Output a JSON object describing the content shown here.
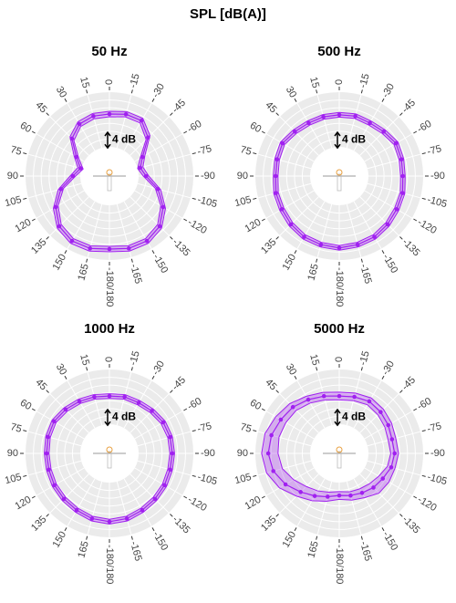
{
  "title": "SPL [dB(A)]",
  "chart_data": [
    {
      "type": "polar",
      "title": "50 Hz",
      "color": "#a020f0",
      "theta": [
        0,
        -15,
        -30,
        -45,
        -60,
        -75,
        -90,
        -105,
        -120,
        -135,
        -150,
        -165,
        180,
        165,
        150,
        135,
        120,
        105,
        90,
        75,
        60,
        45,
        30,
        15
      ],
      "series": [
        {
          "color": "#a020f0",
          "values": [
            8.4,
            8.9,
            8.9,
            6.5,
            2.3,
            0.7,
            1.9,
            5.4,
            8.4,
            10.7,
            11.7,
            11.7,
            11.2,
            11.7,
            11.7,
            10.7,
            8.4,
            5.4,
            1.9,
            0.2,
            2.3,
            6.1,
            7.9,
            8.4
          ],
          "lower": [
            7.7,
            8.2,
            8.2,
            5.8,
            1.6,
            0.0,
            1.2,
            4.7,
            7.7,
            10.0,
            11.0,
            11.0,
            10.5,
            11.0,
            11.0,
            10.0,
            7.7,
            4.7,
            1.2,
            -0.5,
            1.6,
            5.4,
            7.2,
            7.7
          ],
          "upper": [
            9.1,
            9.6,
            9.6,
            7.2,
            3.0,
            1.4,
            2.6,
            6.1,
            9.1,
            11.4,
            12.4,
            12.4,
            11.9,
            12.4,
            12.4,
            11.4,
            9.1,
            6.1,
            2.6,
            0.9,
            3.0,
            6.8,
            8.6,
            9.1
          ]
        }
      ],
      "rlim": [
        0,
        14
      ],
      "rticks": [
        2,
        4,
        6,
        8,
        10,
        12
      ],
      "thetaticks": [
        0,
        -15,
        -30,
        -45,
        -60,
        -75,
        -90,
        -105,
        -120,
        -135,
        -150,
        -165,
        {
          "value": 180,
          "label": "-180/180"
        },
        165,
        150,
        135,
        120,
        105,
        90,
        75,
        60,
        45,
        30,
        15
      ],
      "scale_bar": {
        "value": 4,
        "label": "4 dB"
      }
    },
    {
      "type": "polar",
      "title": "500 Hz",
      "color": "#a020f0",
      "theta": [
        0,
        -15,
        -30,
        -45,
        -60,
        -75,
        -90,
        -105,
        -120,
        -135,
        -150,
        -165,
        180,
        165,
        150,
        135,
        120,
        105,
        90,
        75,
        60,
        45,
        30,
        15
      ],
      "series": [
        {
          "color": "#a020f0",
          "values": [
            8.2,
            8.4,
            8.2,
            8.6,
            9.3,
            9.0,
            8.8,
            9.3,
            9.5,
            10.0,
            10.5,
            10.7,
            10.9,
            10.7,
            10.5,
            10.0,
            9.5,
            9.3,
            8.8,
            9.0,
            9.3,
            8.6,
            8.2,
            8.2
          ],
          "lower": [
            7.6,
            7.8,
            7.6,
            8.0,
            8.7,
            8.4,
            8.2,
            8.7,
            8.9,
            9.4,
            9.9,
            10.1,
            10.3,
            10.1,
            9.9,
            9.4,
            8.9,
            8.7,
            8.2,
            8.4,
            8.7,
            8.0,
            7.6,
            7.6
          ],
          "upper": [
            8.8,
            9.0,
            8.8,
            9.2,
            9.9,
            9.6,
            9.4,
            9.9,
            10.1,
            10.6,
            11.1,
            11.3,
            11.5,
            11.3,
            11.1,
            10.6,
            10.1,
            9.9,
            9.4,
            9.6,
            9.9,
            9.2,
            8.8,
            8.8
          ]
        }
      ],
      "rlim": [
        0,
        14
      ],
      "rticks": [
        2,
        4,
        6,
        8,
        10,
        12
      ],
      "thetaticks": [
        0,
        -15,
        -30,
        -45,
        -60,
        -75,
        -90,
        -105,
        -120,
        -135,
        -150,
        -165,
        {
          "value": 180,
          "label": "-180/180"
        },
        165,
        150,
        135,
        120,
        105,
        90,
        75,
        60,
        45,
        30,
        15
      ],
      "scale_bar": {
        "value": 4,
        "label": "4 dB"
      }
    },
    {
      "type": "polar",
      "title": "1000 Hz",
      "color": "#a020f0",
      "theta": [
        0,
        -15,
        -30,
        -45,
        -60,
        -75,
        -90,
        -105,
        -120,
        -135,
        -150,
        -165,
        180,
        165,
        150,
        135,
        120,
        105,
        90,
        75,
        60,
        45,
        30,
        15
      ],
      "series": [
        {
          "color": "#a020f0",
          "values": [
            7.2,
            7.5,
            7.5,
            7.9,
            8.4,
            8.6,
            8.6,
            8.6,
            8.8,
            9.0,
            9.3,
            9.8,
            10.0,
            9.8,
            9.3,
            9.0,
            8.8,
            8.6,
            8.6,
            8.8,
            8.9,
            8.4,
            7.9,
            7.5
          ],
          "lower": [
            6.6,
            6.9,
            6.9,
            7.3,
            7.8,
            8.0,
            8.0,
            8.0,
            8.2,
            8.4,
            8.7,
            9.2,
            9.4,
            9.2,
            8.7,
            8.4,
            8.2,
            8.0,
            8.0,
            8.2,
            8.3,
            7.8,
            7.3,
            6.9
          ],
          "upper": [
            7.8,
            8.1,
            8.1,
            8.5,
            9.0,
            9.2,
            9.2,
            9.2,
            9.4,
            9.6,
            9.9,
            10.4,
            10.6,
            10.4,
            9.9,
            9.6,
            9.4,
            9.2,
            9.2,
            9.4,
            9.5,
            9.0,
            8.5,
            8.1
          ]
        }
      ],
      "rlim": [
        0,
        14
      ],
      "rticks": [
        2,
        4,
        6,
        8,
        10,
        12
      ],
      "thetaticks": [
        0,
        -15,
        -30,
        -45,
        -60,
        -75,
        -90,
        -105,
        -120,
        -135,
        -150,
        -165,
        {
          "value": 180,
          "label": "-180/180"
        },
        165,
        150,
        135,
        120,
        105,
        90,
        75,
        60,
        45,
        30,
        15
      ],
      "scale_bar": {
        "value": 4,
        "label": "4 dB"
      }
    },
    {
      "type": "polar",
      "title": "5000 Hz",
      "color": "#a020f0",
      "theta": [
        0,
        -15,
        -30,
        -45,
        -60,
        -75,
        -90,
        -105,
        -120,
        -135,
        -150,
        -165,
        180,
        165,
        150,
        135,
        120,
        105,
        90,
        75,
        60,
        45,
        30,
        15
      ],
      "series": [
        {
          "color": "#a020f0",
          "values": [
            7.2,
            7.5,
            7.9,
            7.5,
            7.0,
            6.5,
            6.7,
            6.3,
            5.4,
            4.9,
            4.2,
            3.7,
            3.3,
            4.0,
            5.1,
            6.5,
            8.4,
            10.0,
            10.7,
            10.5,
            9.8,
            9.3,
            8.4,
            7.7
          ],
          "lower": [
            6.2,
            6.5,
            6.9,
            6.5,
            6.0,
            5.5,
            5.7,
            5.3,
            4.2,
            3.5,
            3.0,
            2.7,
            2.3,
            2.8,
            3.6,
            4.5,
            6.0,
            7.6,
            8.2,
            8.5,
            8.3,
            8.1,
            7.4,
            6.7
          ],
          "upper": [
            8.2,
            8.5,
            8.9,
            8.5,
            8.0,
            7.5,
            7.7,
            7.3,
            7.2,
            6.9,
            5.6,
            4.9,
            4.3,
            5.2,
            6.5,
            8.0,
            10.2,
            11.8,
            12.4,
            12.2,
            11.3,
            10.5,
            9.4,
            8.7
          ]
        }
      ],
      "rlim": [
        0,
        14
      ],
      "rticks": [
        2,
        4,
        6,
        8,
        10,
        12
      ],
      "thetaticks": [
        0,
        -15,
        -30,
        -45,
        -60,
        -75,
        -90,
        -105,
        -120,
        -135,
        -150,
        -165,
        {
          "value": 180,
          "label": "-180/180"
        },
        165,
        150,
        135,
        120,
        105,
        90,
        75,
        60,
        45,
        30,
        15
      ],
      "scale_bar": {
        "value": 4,
        "label": "4 dB"
      }
    }
  ]
}
